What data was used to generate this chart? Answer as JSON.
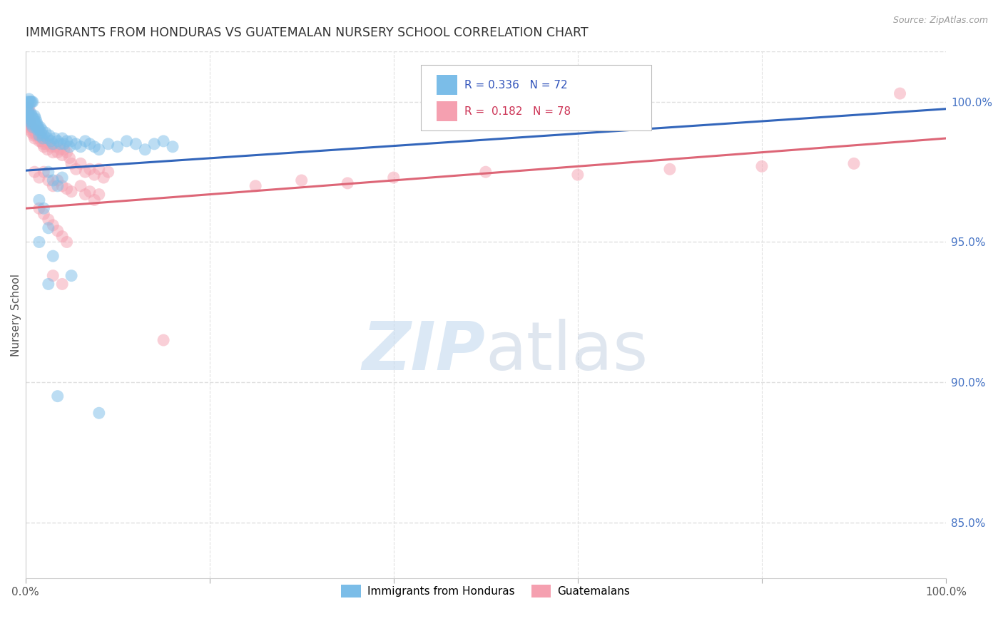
{
  "title": "IMMIGRANTS FROM HONDURAS VS GUATEMALAN NURSERY SCHOOL CORRELATION CHART",
  "source": "Source: ZipAtlas.com",
  "ylabel": "Nursery School",
  "yticks": [
    85.0,
    90.0,
    95.0,
    100.0
  ],
  "ytick_labels": [
    "85.0%",
    "90.0%",
    "95.0%",
    "100.0%"
  ],
  "xlim": [
    0.0,
    1.0
  ],
  "ylim": [
    83.0,
    101.8
  ],
  "legend_blue_label": "Immigrants from Honduras",
  "legend_pink_label": "Guatemalans",
  "blue_color": "#7bbde8",
  "pink_color": "#f5a0b0",
  "blue_line_color": "#3366bb",
  "pink_line_color": "#dd6677",
  "title_color": "#333333",
  "axis_label_color": "#555555",
  "grid_color": "#e0e0e0",
  "blue_trend_x": [
    0.0,
    1.0
  ],
  "blue_trend_y": [
    97.55,
    99.75
  ],
  "pink_trend_x": [
    0.0,
    1.0
  ],
  "pink_trend_y": [
    96.2,
    98.7
  ],
  "blue_points": [
    [
      0.001,
      99.8
    ],
    [
      0.002,
      99.9
    ],
    [
      0.003,
      99.7
    ],
    [
      0.003,
      99.5
    ],
    [
      0.004,
      99.6
    ],
    [
      0.004,
      99.4
    ],
    [
      0.005,
      99.5
    ],
    [
      0.005,
      99.3
    ],
    [
      0.006,
      99.4
    ],
    [
      0.006,
      99.6
    ],
    [
      0.007,
      99.2
    ],
    [
      0.007,
      99.5
    ],
    [
      0.008,
      99.3
    ],
    [
      0.008,
      99.1
    ],
    [
      0.009,
      99.4
    ],
    [
      0.009,
      99.2
    ],
    [
      0.01,
      99.3
    ],
    [
      0.01,
      99.5
    ],
    [
      0.011,
      99.2
    ],
    [
      0.011,
      99.4
    ],
    [
      0.012,
      99.1
    ],
    [
      0.012,
      99.3
    ],
    [
      0.013,
      99.0
    ],
    [
      0.013,
      99.2
    ],
    [
      0.014,
      99.1
    ],
    [
      0.015,
      99.0
    ],
    [
      0.015,
      98.8
    ],
    [
      0.016,
      99.1
    ],
    [
      0.017,
      98.9
    ],
    [
      0.018,
      99.0
    ],
    [
      0.019,
      98.7
    ],
    [
      0.02,
      98.8
    ],
    [
      0.022,
      98.9
    ],
    [
      0.024,
      98.7
    ],
    [
      0.026,
      98.8
    ],
    [
      0.028,
      98.6
    ],
    [
      0.03,
      98.5
    ],
    [
      0.032,
      98.7
    ],
    [
      0.035,
      98.6
    ],
    [
      0.038,
      98.5
    ],
    [
      0.04,
      98.7
    ],
    [
      0.042,
      98.5
    ],
    [
      0.045,
      98.6
    ],
    [
      0.048,
      98.4
    ],
    [
      0.05,
      98.6
    ],
    [
      0.055,
      98.5
    ],
    [
      0.06,
      98.4
    ],
    [
      0.065,
      98.6
    ],
    [
      0.07,
      98.5
    ],
    [
      0.075,
      98.4
    ],
    [
      0.08,
      98.3
    ],
    [
      0.09,
      98.5
    ],
    [
      0.1,
      98.4
    ],
    [
      0.11,
      98.6
    ],
    [
      0.12,
      98.5
    ],
    [
      0.13,
      98.3
    ],
    [
      0.14,
      98.5
    ],
    [
      0.15,
      98.6
    ],
    [
      0.16,
      98.4
    ],
    [
      0.002,
      100.0
    ],
    [
      0.003,
      100.0
    ],
    [
      0.004,
      100.1
    ],
    [
      0.005,
      100.0
    ],
    [
      0.006,
      100.0
    ],
    [
      0.007,
      100.0
    ],
    [
      0.008,
      100.0
    ],
    [
      0.025,
      97.5
    ],
    [
      0.03,
      97.2
    ],
    [
      0.035,
      97.0
    ],
    [
      0.04,
      97.3
    ],
    [
      0.015,
      96.5
    ],
    [
      0.02,
      96.2
    ],
    [
      0.025,
      95.5
    ],
    [
      0.015,
      95.0
    ],
    [
      0.03,
      94.5
    ],
    [
      0.05,
      93.8
    ],
    [
      0.025,
      93.5
    ],
    [
      0.035,
      89.5
    ],
    [
      0.08,
      88.9
    ]
  ],
  "pink_points": [
    [
      0.001,
      99.5
    ],
    [
      0.002,
      99.6
    ],
    [
      0.002,
      99.3
    ],
    [
      0.003,
      99.5
    ],
    [
      0.003,
      99.2
    ],
    [
      0.004,
      99.4
    ],
    [
      0.004,
      99.1
    ],
    [
      0.005,
      99.3
    ],
    [
      0.005,
      99.0
    ],
    [
      0.006,
      99.2
    ],
    [
      0.007,
      99.1
    ],
    [
      0.007,
      98.9
    ],
    [
      0.008,
      99.0
    ],
    [
      0.009,
      98.8
    ],
    [
      0.01,
      99.0
    ],
    [
      0.01,
      98.7
    ],
    [
      0.011,
      98.9
    ],
    [
      0.012,
      98.8
    ],
    [
      0.013,
      99.0
    ],
    [
      0.014,
      98.8
    ],
    [
      0.015,
      98.9
    ],
    [
      0.015,
      98.6
    ],
    [
      0.016,
      98.8
    ],
    [
      0.017,
      98.6
    ],
    [
      0.018,
      98.7
    ],
    [
      0.019,
      98.5
    ],
    [
      0.02,
      98.6
    ],
    [
      0.02,
      98.4
    ],
    [
      0.022,
      98.5
    ],
    [
      0.024,
      98.3
    ],
    [
      0.026,
      98.5
    ],
    [
      0.028,
      98.4
    ],
    [
      0.03,
      98.2
    ],
    [
      0.032,
      98.4
    ],
    [
      0.035,
      98.2
    ],
    [
      0.038,
      98.3
    ],
    [
      0.04,
      98.1
    ],
    [
      0.042,
      98.3
    ],
    [
      0.045,
      98.2
    ],
    [
      0.048,
      98.0
    ],
    [
      0.05,
      97.8
    ],
    [
      0.055,
      97.6
    ],
    [
      0.06,
      97.8
    ],
    [
      0.065,
      97.5
    ],
    [
      0.07,
      97.6
    ],
    [
      0.075,
      97.4
    ],
    [
      0.08,
      97.6
    ],
    [
      0.085,
      97.3
    ],
    [
      0.09,
      97.5
    ],
    [
      0.01,
      97.5
    ],
    [
      0.015,
      97.3
    ],
    [
      0.02,
      97.5
    ],
    [
      0.025,
      97.2
    ],
    [
      0.03,
      97.0
    ],
    [
      0.035,
      97.2
    ],
    [
      0.04,
      97.0
    ],
    [
      0.045,
      96.9
    ],
    [
      0.05,
      96.8
    ],
    [
      0.06,
      97.0
    ],
    [
      0.065,
      96.7
    ],
    [
      0.07,
      96.8
    ],
    [
      0.075,
      96.5
    ],
    [
      0.08,
      96.7
    ],
    [
      0.015,
      96.2
    ],
    [
      0.02,
      96.0
    ],
    [
      0.025,
      95.8
    ],
    [
      0.03,
      95.6
    ],
    [
      0.035,
      95.4
    ],
    [
      0.04,
      95.2
    ],
    [
      0.045,
      95.0
    ],
    [
      0.03,
      93.8
    ],
    [
      0.04,
      93.5
    ],
    [
      0.15,
      91.5
    ],
    [
      0.002,
      99.8
    ],
    [
      0.003,
      99.7
    ],
    [
      0.004,
      99.8
    ],
    [
      0.005,
      99.6
    ],
    [
      0.25,
      97.0
    ],
    [
      0.3,
      97.2
    ],
    [
      0.35,
      97.1
    ],
    [
      0.4,
      97.3
    ],
    [
      0.5,
      97.5
    ],
    [
      0.6,
      97.4
    ],
    [
      0.7,
      97.6
    ],
    [
      0.8,
      97.7
    ],
    [
      0.9,
      97.8
    ],
    [
      0.95,
      100.3
    ]
  ]
}
